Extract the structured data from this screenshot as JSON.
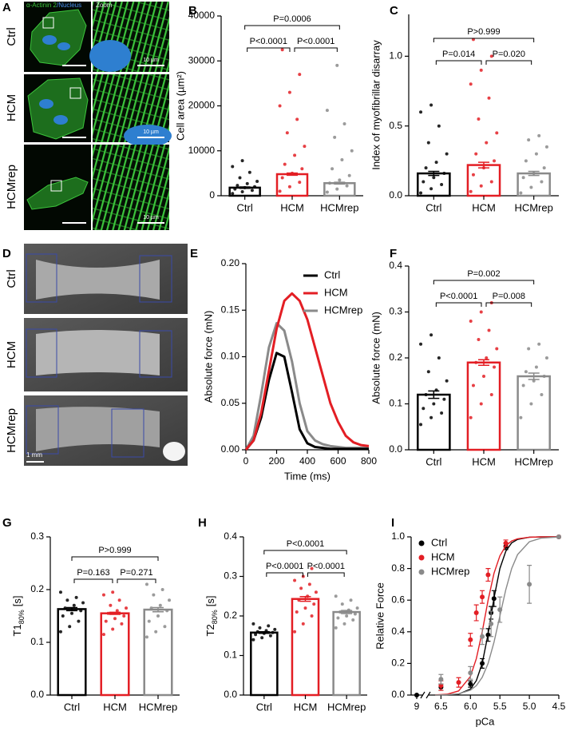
{
  "panel_a": {
    "letter": "A",
    "stain": [
      "α-Actinin 2",
      "/Nucleus"
    ],
    "zoom": "Zoom",
    "rows": [
      "Ctrl",
      "HCM",
      "HCMrep"
    ],
    "scale_labels": [
      "10 µm",
      "10 µm",
      "10 µm"
    ]
  },
  "panel_d": {
    "letter": "D",
    "rows": [
      "Ctrl",
      "HCM",
      "HCMrep"
    ],
    "scale_label": "1 mm"
  },
  "chart_data": [
    {
      "panel": "B",
      "type": "bar",
      "ylabel": "Cell area (µm²)",
      "categories": [
        "Ctrl",
        "HCM",
        "HCMrep"
      ],
      "colors": [
        "#000000",
        "#e31e24",
        "#8a8a8a"
      ],
      "means": [
        1800,
        4800,
        2800
      ],
      "errors": [
        150,
        250,
        200
      ],
      "points": [
        [
          500,
          900,
          1200,
          1500,
          1800,
          2000,
          2300,
          2700,
          3200,
          4000,
          5200,
          6500,
          7800
        ],
        [
          1000,
          2000,
          3000,
          4000,
          5000,
          6000,
          7000,
          9000,
          11000,
          14000,
          17000,
          20000,
          23000,
          27000,
          32500
        ],
        [
          800,
          1500,
          2200,
          2800,
          3500,
          4500,
          6000,
          8000,
          10000,
          13000,
          16000,
          19000,
          29000
        ]
      ],
      "ylim": [
        0,
        40000
      ],
      "yticks": [
        0,
        10000,
        20000,
        30000,
        40000
      ],
      "comparisons": [
        {
          "groups": [
            "Ctrl",
            "HCMrep"
          ],
          "label": "P=0.0006"
        },
        {
          "groups": [
            "Ctrl",
            "HCM"
          ],
          "label": "P<0.0001"
        },
        {
          "groups": [
            "HCM",
            "HCMrep"
          ],
          "label": "P<0.0001"
        }
      ]
    },
    {
      "panel": "C",
      "type": "bar",
      "ylabel": "Index of myofibrillar disarray",
      "categories": [
        "Ctrl",
        "HCM",
        "HCMrep"
      ],
      "colors": [
        "#000000",
        "#e31e24",
        "#8a8a8a"
      ],
      "means": [
        0.16,
        0.22,
        0.16
      ],
      "errors": [
        0.015,
        0.02,
        0.015
      ],
      "points": [
        [
          0.02,
          0.05,
          0.08,
          0.1,
          0.13,
          0.16,
          0.2,
          0.24,
          0.3,
          0.38,
          0.5,
          0.6,
          0.65
        ],
        [
          0.03,
          0.07,
          0.1,
          0.15,
          0.2,
          0.25,
          0.3,
          0.38,
          0.45,
          0.55,
          0.7,
          0.8,
          0.9,
          1.0,
          1.12
        ],
        [
          0.02,
          0.06,
          0.1,
          0.13,
          0.16,
          0.2,
          0.25,
          0.3,
          0.35,
          0.4,
          0.43
        ]
      ],
      "ylim": [
        0,
        1.3
      ],
      "yticks": [
        {
          "value": 0,
          "label": "0.0"
        },
        0.5,
        {
          "value": 1,
          "label": "1.0"
        }
      ],
      "comparisons": [
        {
          "groups": [
            "Ctrl",
            "HCMrep"
          ],
          "label": "P>0.999"
        },
        {
          "groups": [
            "Ctrl",
            "HCM"
          ],
          "label": "P=0.014"
        },
        {
          "groups": [
            "HCM",
            "HCMrep"
          ],
          "label": "P=0.020"
        }
      ]
    },
    {
      "panel": "E",
      "type": "line",
      "ylabel": "Absolute force (mN)",
      "xlabel": "Time (ms)",
      "x": [
        0,
        50,
        100,
        150,
        200,
        250,
        300,
        350,
        400,
        450,
        500,
        550,
        600,
        650,
        700,
        750,
        800
      ],
      "series": [
        {
          "name": "Ctrl",
          "color": "#000000",
          "values": [
            0,
            0.01,
            0.035,
            0.075,
            0.104,
            0.1,
            0.062,
            0.022,
            0.007,
            0.003,
            0.002,
            0.001,
            0.001,
            0.001,
            0.001,
            0.001,
            0.001
          ]
        },
        {
          "name": "HCM",
          "color": "#e31e24",
          "values": [
            0,
            0.01,
            0.04,
            0.085,
            0.13,
            0.16,
            0.168,
            0.16,
            0.14,
            0.11,
            0.08,
            0.05,
            0.03,
            0.015,
            0.008,
            0.005,
            0.004
          ]
        },
        {
          "name": "HCMrep",
          "color": "#8a8a8a",
          "values": [
            0,
            0.015,
            0.06,
            0.11,
            0.136,
            0.128,
            0.095,
            0.05,
            0.02,
            0.01,
            0.006,
            0.004,
            0.003,
            0.002,
            0.002,
            0.002,
            0.002
          ]
        }
      ],
      "xlim": [
        0,
        800
      ],
      "xticks": [
        0,
        200,
        400,
        600,
        800
      ],
      "ylim": [
        0,
        0.2
      ],
      "yticks": [
        {
          "value": 0,
          "label": "0.00"
        },
        0.05,
        {
          "value": 0.1,
          "label": "0.10"
        },
        0.15,
        {
          "value": 0.2,
          "label": "0.20"
        }
      ]
    },
    {
      "panel": "F",
      "type": "bar",
      "ylabel": "Absolute force (mN)",
      "categories": [
        "Ctrl",
        "HCM",
        "HCMrep"
      ],
      "colors": [
        "#000000",
        "#e31e24",
        "#8a8a8a"
      ],
      "means": [
        0.12,
        0.19,
        0.16
      ],
      "errors": [
        0.008,
        0.006,
        0.007
      ],
      "points": [
        [
          0.055,
          0.07,
          0.08,
          0.09,
          0.1,
          0.11,
          0.12,
          0.13,
          0.15,
          0.17,
          0.2,
          0.23,
          0.25
        ],
        [
          0.07,
          0.1,
          0.12,
          0.14,
          0.16,
          0.18,
          0.19,
          0.2,
          0.22,
          0.24,
          0.26,
          0.28,
          0.3,
          0.32
        ],
        [
          0.07,
          0.1,
          0.12,
          0.14,
          0.15,
          0.16,
          0.17,
          0.18,
          0.2,
          0.22,
          0.23
        ]
      ],
      "ylim": [
        0,
        0.4
      ],
      "yticks": [
        {
          "value": 0,
          "label": "0.0"
        },
        0.1,
        0.2,
        0.3,
        0.4
      ],
      "comparisons": [
        {
          "groups": [
            "Ctrl",
            "HCMrep"
          ],
          "label": "P=0.002"
        },
        {
          "groups": [
            "Ctrl",
            "HCM"
          ],
          "label": "P<0.0001"
        },
        {
          "groups": [
            "HCM",
            "HCMrep"
          ],
          "label": "P=0.008"
        }
      ]
    },
    {
      "panel": "G",
      "type": "bar",
      "ylabel": [
        "T1",
        "80%",
        "[s]"
      ],
      "categories": [
        "Ctrl",
        "HCM",
        "HCMrep"
      ],
      "colors": [
        "#000000",
        "#e31e24",
        "#8a8a8a"
      ],
      "means": [
        0.163,
        0.155,
        0.162
      ],
      "errors": [
        0.003,
        0.002,
        0.004
      ],
      "points": [
        [
          0.12,
          0.13,
          0.14,
          0.15,
          0.155,
          0.16,
          0.165,
          0.17,
          0.175,
          0.18,
          0.185,
          0.195
        ],
        [
          0.115,
          0.125,
          0.135,
          0.14,
          0.145,
          0.15,
          0.155,
          0.16,
          0.165,
          0.17,
          0.18,
          0.19,
          0.195
        ],
        [
          0.11,
          0.12,
          0.13,
          0.14,
          0.15,
          0.16,
          0.165,
          0.17,
          0.18,
          0.19,
          0.2,
          0.21
        ]
      ],
      "ylim": [
        0,
        0.3
      ],
      "yticks": [
        {
          "value": 0,
          "label": "0.0"
        },
        0.1,
        0.2,
        0.3
      ],
      "comparisons": [
        {
          "groups": [
            "Ctrl",
            "HCMrep"
          ],
          "label": "P>0.999"
        },
        {
          "groups": [
            "Ctrl",
            "HCM"
          ],
          "label": "P=0.163"
        },
        {
          "groups": [
            "HCM",
            "HCMrep"
          ],
          "label": "P=0.271"
        }
      ]
    },
    {
      "panel": "H",
      "type": "bar",
      "ylabel": [
        "T2",
        "80%",
        "[s]"
      ],
      "categories": [
        "Ctrl",
        "HCM",
        "HCMrep"
      ],
      "colors": [
        "#000000",
        "#e31e24",
        "#8a8a8a"
      ],
      "means": [
        0.158,
        0.243,
        0.21
      ],
      "errors": [
        0.002,
        0.006,
        0.004
      ],
      "points": [
        [
          0.14,
          0.145,
          0.15,
          0.153,
          0.156,
          0.158,
          0.16,
          0.163,
          0.166,
          0.17,
          0.175,
          0.18
        ],
        [
          0.16,
          0.18,
          0.2,
          0.21,
          0.22,
          0.23,
          0.24,
          0.25,
          0.26,
          0.27,
          0.28,
          0.29,
          0.3,
          0.32
        ],
        [
          0.17,
          0.18,
          0.19,
          0.195,
          0.2,
          0.205,
          0.21,
          0.215,
          0.22,
          0.23,
          0.24,
          0.25
        ]
      ],
      "ylim": [
        0,
        0.4
      ],
      "yticks": [
        {
          "value": 0,
          "label": "0.0"
        },
        0.1,
        0.2,
        0.3,
        0.4
      ],
      "comparisons": [
        {
          "groups": [
            "Ctrl",
            "HCMrep"
          ],
          "label": "P<0.0001"
        },
        {
          "groups": [
            "Ctrl",
            "HCM"
          ],
          "label": "P<0.0001"
        },
        {
          "groups": [
            "HCM",
            "HCMrep"
          ],
          "label": "P<0.0001"
        }
      ]
    },
    {
      "panel": "I",
      "type": "dose",
      "ylabel": "Relative Force",
      "xlabel": "pCa",
      "xlim": [
        9,
        4.5
      ],
      "axis_break": [
        9,
        6.6
      ],
      "xticks": [
        9,
        6.5,
        {
          "value": 6,
          "label": "6.0"
        },
        5.5,
        {
          "value": 5,
          "label": "5.0"
        },
        4.5
      ],
      "ylim": [
        0,
        1
      ],
      "yticks": [
        {
          "value": 0,
          "label": "0.0"
        },
        0.2,
        0.4,
        0.6,
        0.8,
        {
          "value": 1,
          "label": "1.0"
        }
      ],
      "fit_x": [
        6.6,
        6.4,
        6.2,
        6.0,
        5.9,
        5.8,
        5.7,
        5.6,
        5.5,
        5.4,
        5.3,
        5.2,
        5.0,
        4.8,
        4.5
      ],
      "series": [
        {
          "name": "Ctrl",
          "color": "#000000",
          "x": [
            9,
            6.5,
            6.0,
            5.8,
            5.7,
            5.65,
            5.6,
            5.4,
            4.5
          ],
          "values": [
            0,
            0.05,
            0.07,
            0.2,
            0.38,
            0.52,
            0.61,
            0.94,
            1.0
          ],
          "errors": [
            0,
            0.02,
            0.02,
            0.03,
            0.04,
            0.04,
            0.05,
            0.02,
            0
          ],
          "fit_values": [
            0.0002,
            0.001,
            0.006,
            0.038,
            0.091,
            0.2,
            0.387,
            0.613,
            0.8,
            0.909,
            0.962,
            0.984,
            0.998,
            1,
            1
          ]
        },
        {
          "name": "HCM",
          "color": "#e31e24",
          "x": [
            6.5,
            6.2,
            6.0,
            5.9,
            5.8,
            5.7,
            5.4,
            4.5
          ],
          "values": [
            0.06,
            0.08,
            0.35,
            0.52,
            0.62,
            0.76,
            0.96,
            1.0
          ],
          "errors": [
            0.03,
            0.03,
            0.04,
            0.05,
            0.04,
            0.04,
            0.02,
            0
          ],
          "fit_values": [
            0.001,
            0.005,
            0.026,
            0.118,
            0.23,
            0.4,
            0.6,
            0.77,
            0.88,
            0.944,
            0.974,
            0.988,
            0.998,
            1,
            1
          ]
        },
        {
          "name": "HCMrep",
          "color": "#8a8a8a",
          "x": [
            6.5,
            6.0,
            5.8,
            5.65,
            5.5,
            5.0,
            4.5
          ],
          "values": [
            0.1,
            0.14,
            0.37,
            0.45,
            0.54,
            0.7,
            1.0
          ],
          "errors": [
            0.03,
            0.04,
            0.05,
            0.08,
            0.08,
            0.12,
            0
          ],
          "fit_values": [
            0.0005,
            0.002,
            0.008,
            0.031,
            0.059,
            0.112,
            0.2,
            0.334,
            0.5,
            0.666,
            0.8,
            0.888,
            0.969,
            0.992,
            0.999
          ]
        }
      ]
    }
  ]
}
